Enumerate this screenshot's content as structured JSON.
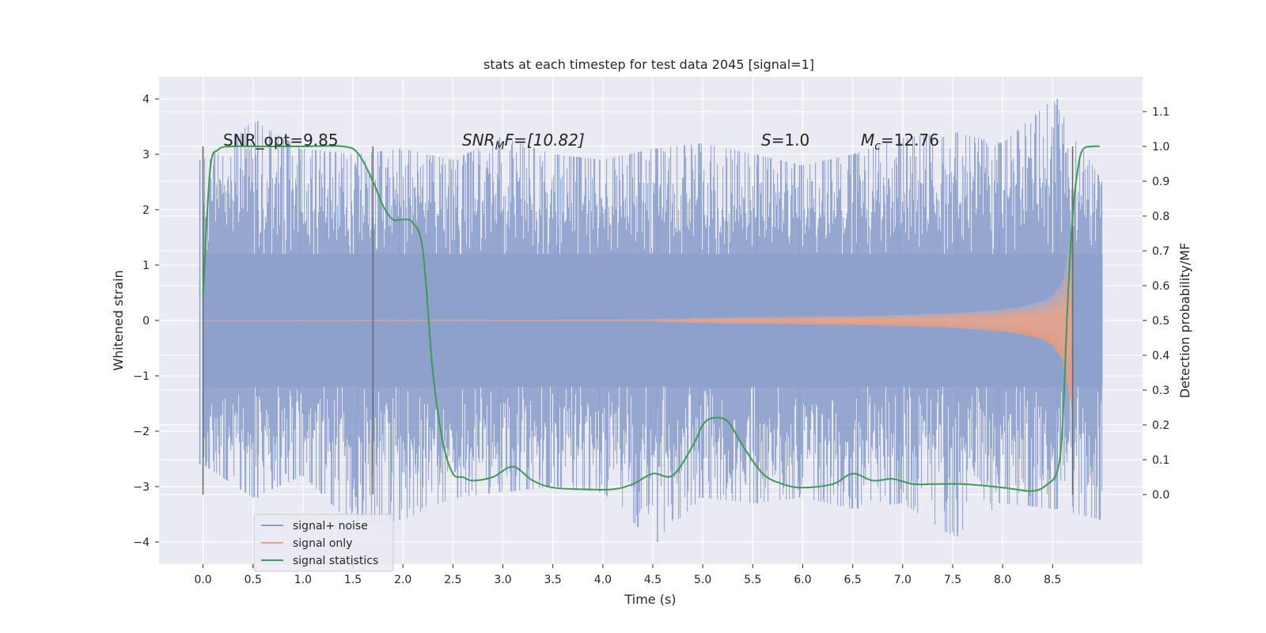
{
  "chart_data": {
    "type": "line",
    "title": "stats at each timestep for test data 2045 [signal=1]",
    "xlabel": "Time (s)",
    "ylabel_left": "Whitened strain",
    "ylabel_right": "Detection probability/MF",
    "xlim": [
      -0.44,
      9.4
    ],
    "ylim_left": [
      -4.4,
      4.4
    ],
    "ylim_right": [
      -0.2,
      1.2
    ],
    "grid": true,
    "legend_position": "lower-left",
    "x_ticks": [
      "0.0",
      "0.5",
      "1.0",
      "1.5",
      "2.0",
      "2.5",
      "3.0",
      "3.5",
      "4.0",
      "4.5",
      "5.0",
      "5.5",
      "6.0",
      "6.5",
      "7.0",
      "7.5",
      "8.0",
      "8.5"
    ],
    "y_left_ticks": [
      "4",
      "3",
      "2",
      "1",
      "0",
      "−1",
      "−2",
      "−3",
      "−4"
    ],
    "y_right_ticks": [
      "1.1",
      "1.0",
      "0.9",
      "0.8",
      "0.7",
      "0.6",
      "0.5",
      "0.4",
      "0.3",
      "0.2",
      "0.1",
      "0.0"
    ],
    "annotations": {
      "snr_opt": "SNR_opt=9.85",
      "snr_mf_main": "SNR",
      "snr_mf_sub": "M",
      "snr_mf_rest": "F=[10.82]",
      "s_main": "S",
      "s_rest": "=1.0",
      "mc_main": "M",
      "mc_sub": "c",
      "mc_rest": "=12.76"
    },
    "vertical_markers_s": [
      0.0,
      1.7,
      8.7
    ],
    "noise_envelope": {
      "x": [
        0.0,
        0.5,
        1.0,
        1.5,
        2.0,
        2.5,
        3.0,
        3.5,
        4.0,
        4.5,
        5.0,
        5.5,
        6.0,
        6.5,
        7.0,
        7.5,
        8.0,
        8.5,
        9.0
      ],
      "upper": [
        2.9,
        3.6,
        3.1,
        3.0,
        3.1,
        2.9,
        3.3,
        3.0,
        2.9,
        3.1,
        3.2,
        3.0,
        2.8,
        3.0,
        3.3,
        3.4,
        3.2,
        4.0,
        2.5
      ],
      "lower": [
        -2.6,
        -3.2,
        -2.8,
        -3.7,
        -3.6,
        -3.2,
        -3.1,
        -3.0,
        -3.1,
        -4.0,
        -3.2,
        -3.3,
        -3.2,
        -3.4,
        -3.3,
        -3.9,
        -3.3,
        -3.4,
        -3.6
      ]
    },
    "signal_only": {
      "x": [
        0.0,
        4.5,
        5.0,
        5.5,
        6.0,
        6.5,
        7.0,
        7.5,
        8.0,
        8.2,
        8.4,
        8.5,
        8.6,
        8.65,
        8.7
      ],
      "amplitude": [
        0.0,
        0.01,
        0.05,
        0.06,
        0.07,
        0.08,
        0.1,
        0.13,
        0.2,
        0.25,
        0.35,
        0.45,
        0.7,
        1.2,
        1.6
      ]
    },
    "series": [
      {
        "name": "signal statistics",
        "x": [
          0.0,
          0.07,
          0.15,
          0.3,
          0.5,
          1.0,
          1.4,
          1.55,
          1.7,
          1.8,
          1.9,
          2.0,
          2.1,
          2.2,
          2.3,
          2.4,
          2.5,
          2.6,
          2.7,
          2.9,
          3.1,
          3.3,
          3.5,
          3.8,
          4.1,
          4.3,
          4.5,
          4.7,
          4.9,
          5.0,
          5.1,
          5.25,
          5.4,
          5.6,
          5.8,
          6.0,
          6.3,
          6.5,
          6.7,
          6.9,
          7.1,
          7.3,
          7.6,
          8.0,
          8.3,
          8.45,
          8.55,
          8.6,
          8.65,
          8.7,
          8.75,
          8.8,
          8.9,
          8.97
        ],
        "values": [
          0.57,
          0.93,
          0.99,
          1.0,
          1.0,
          1.0,
          1.0,
          0.98,
          0.9,
          0.83,
          0.79,
          0.79,
          0.78,
          0.7,
          0.35,
          0.15,
          0.06,
          0.05,
          0.04,
          0.05,
          0.08,
          0.04,
          0.02,
          0.015,
          0.015,
          0.03,
          0.06,
          0.055,
          0.14,
          0.2,
          0.22,
          0.21,
          0.14,
          0.06,
          0.03,
          0.02,
          0.03,
          0.06,
          0.04,
          0.045,
          0.03,
          0.03,
          0.03,
          0.02,
          0.01,
          0.03,
          0.07,
          0.2,
          0.55,
          0.8,
          0.93,
          0.99,
          1.0,
          1.0
        ]
      }
    ],
    "legend": [
      "signal+ noise",
      "signal only",
      "signal statistics"
    ],
    "colors": {
      "noise": "#8da0cb",
      "signal": "#e5a48c",
      "stats": "#3e9a55",
      "markers": "#666666",
      "background": "#eaeaf2",
      "grid": "#ffffff"
    }
  }
}
